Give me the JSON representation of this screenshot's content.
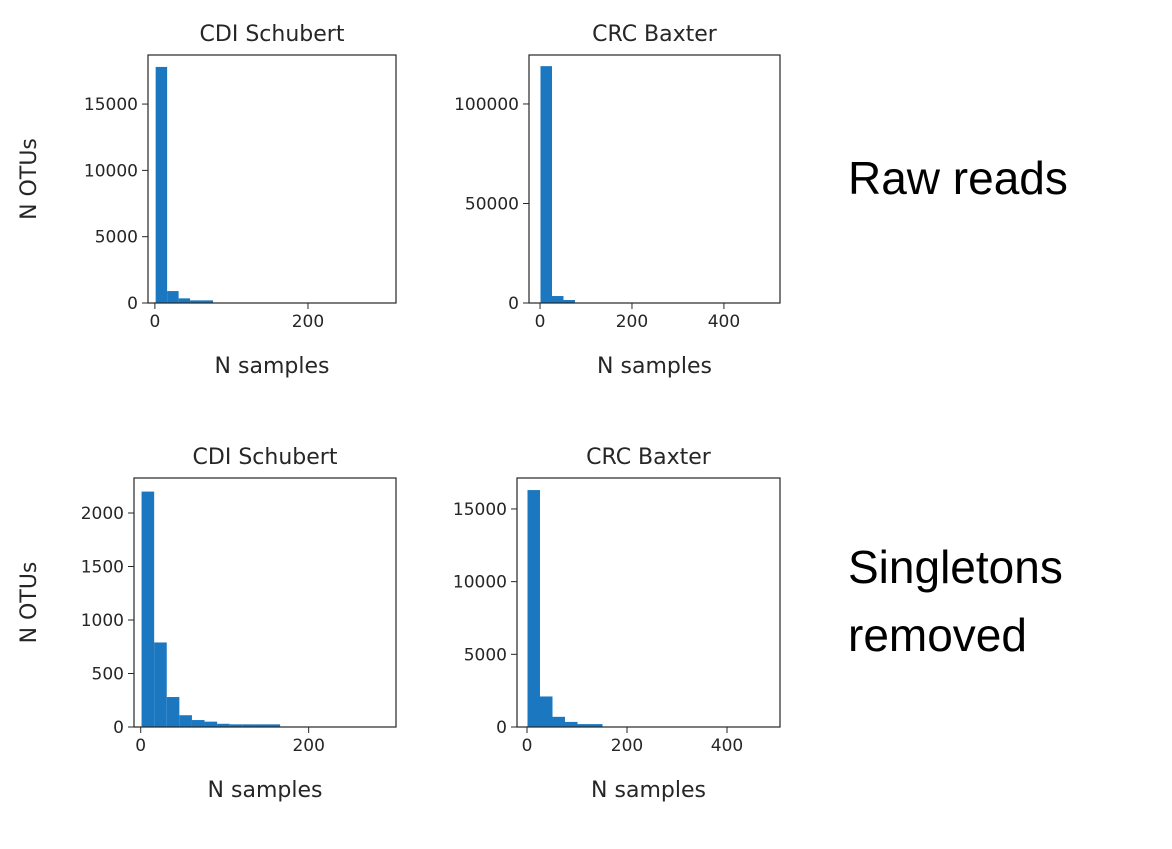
{
  "chart_data": [
    {
      "type": "histogram",
      "title": "CDI Schubert",
      "xlabel": "N samples",
      "ylabel": "N OTUs",
      "color": "#1a77c0",
      "bins": [
        1,
        16,
        31,
        46,
        61,
        76,
        91,
        106,
        121,
        136,
        151,
        166,
        181,
        196,
        211,
        226,
        241,
        256,
        271,
        286,
        301
      ],
      "values": [
        17800,
        900,
        350,
        200,
        200,
        0,
        0,
        0,
        0,
        0,
        0,
        0,
        0,
        0,
        0,
        0,
        0,
        0,
        0,
        0
      ],
      "xlim": [
        -9,
        315
      ],
      "xticks": [
        0,
        200
      ],
      "ylim": [
        0,
        18700
      ],
      "yticks": [
        0,
        5000,
        10000,
        15000
      ]
    },
    {
      "type": "histogram",
      "title": "CRC Baxter",
      "xlabel": "N samples",
      "color": "#1a77c0",
      "bins": [
        1,
        26,
        51,
        76,
        101,
        126,
        151,
        176,
        201,
        226,
        251,
        276,
        301,
        326,
        351,
        376,
        401,
        426,
        451,
        476,
        501
      ],
      "values": [
        119000,
        3500,
        1500,
        0,
        0,
        0,
        0,
        0,
        0,
        0,
        0,
        0,
        0,
        0,
        0,
        0,
        0,
        0,
        0,
        0
      ],
      "xlim": [
        -24,
        522
      ],
      "xticks": [
        0,
        200,
        400
      ],
      "ylim": [
        0,
        124600
      ],
      "yticks": [
        0,
        50000,
        100000
      ]
    },
    {
      "type": "histogram",
      "title": "CDI Schubert",
      "xlabel": "N samples",
      "ylabel": "N OTUs",
      "color": "#1a77c0",
      "bins": [
        1,
        16,
        31,
        46,
        61,
        76,
        91,
        106,
        121,
        136,
        151,
        166,
        181,
        196,
        211,
        226,
        241,
        256,
        271,
        286,
        301
      ],
      "values": [
        2200,
        790,
        280,
        110,
        65,
        50,
        30,
        25,
        25,
        25,
        25,
        0,
        0,
        0,
        0,
        0,
        0,
        0,
        0,
        0
      ],
      "xlim": [
        -8,
        304
      ],
      "xticks": [
        0,
        200
      ],
      "ylim": [
        0,
        2327
      ],
      "yticks": [
        0,
        500,
        1000,
        1500,
        2000
      ]
    },
    {
      "type": "histogram",
      "title": "CRC Baxter",
      "xlabel": "N samples",
      "color": "#1a77c0",
      "bins": [
        1,
        26,
        51,
        76,
        101,
        126,
        151,
        176,
        201,
        226,
        251,
        276,
        301,
        326,
        351,
        376,
        401,
        426,
        451,
        476,
        501
      ],
      "values": [
        16300,
        2100,
        700,
        350,
        200,
        200,
        0,
        0,
        0,
        0,
        0,
        0,
        0,
        0,
        0,
        0,
        0,
        0,
        0,
        0
      ],
      "xlim": [
        -20,
        506
      ],
      "xticks": [
        0,
        200,
        400
      ],
      "ylim": [
        0,
        17130
      ],
      "yticks": [
        0,
        5000,
        10000,
        15000
      ]
    }
  ],
  "row_labels": [
    "Raw reads",
    "Singletons removed"
  ]
}
